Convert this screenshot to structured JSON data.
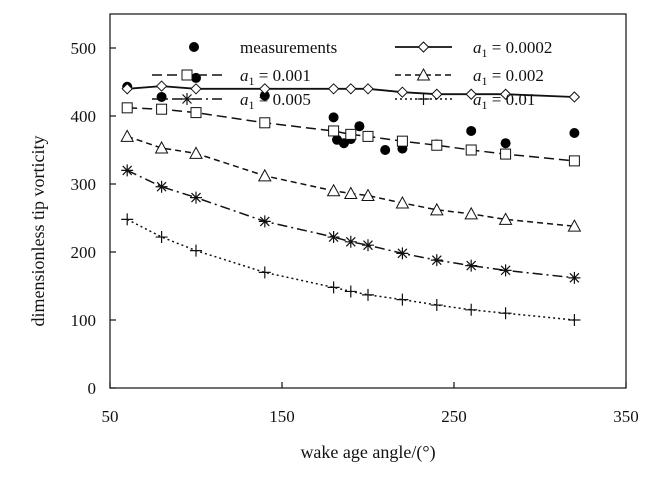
{
  "chart_data": {
    "type": "line",
    "xlabel": "wake age angle/(°)",
    "ylabel": "dimensionless tip vorticity",
    "xlim": [
      50,
      350
    ],
    "ylim": [
      0,
      550
    ],
    "xticks": [
      50,
      150,
      250,
      350
    ],
    "yticks": [
      0,
      100,
      200,
      300,
      400,
      500
    ],
    "grid": false,
    "legend_position": "top",
    "series": [
      {
        "name": "measurements",
        "style": "scatter",
        "marker": "filled-circle",
        "x": [
          60,
          80,
          100,
          140,
          180,
          182,
          186,
          190,
          195,
          210,
          220,
          240,
          260,
          280,
          320
        ],
        "y": [
          443,
          428,
          456,
          430,
          398,
          365,
          360,
          366,
          385,
          350,
          352,
          358,
          378,
          360,
          375
        ]
      },
      {
        "name": "a1 = 0.0002",
        "legend_var": "a",
        "legend_sub": "1",
        "legend_value": " = 0.0002",
        "style": "solid",
        "marker": "diamond",
        "x": [
          60,
          80,
          100,
          140,
          180,
          190,
          200,
          220,
          240,
          260,
          280,
          320
        ],
        "y": [
          440,
          444,
          440,
          440,
          440,
          440,
          440,
          435,
          432,
          432,
          432,
          428
        ]
      },
      {
        "name": "a1 = 0.001",
        "legend_var": "a",
        "legend_sub": "1",
        "legend_value": " = 0.001",
        "style": "dashed",
        "marker": "square",
        "x": [
          60,
          80,
          100,
          140,
          180,
          190,
          200,
          220,
          240,
          260,
          280,
          320
        ],
        "y": [
          412,
          410,
          405,
          390,
          378,
          373,
          370,
          363,
          357,
          350,
          344,
          334
        ]
      },
      {
        "name": "a1 = 0.002",
        "legend_var": "a",
        "legend_sub": "1",
        "legend_value": " = 0.002",
        "style": "dash-short",
        "marker": "triangle",
        "x": [
          60,
          80,
          100,
          140,
          180,
          190,
          200,
          220,
          240,
          260,
          280,
          320
        ],
        "y": [
          370,
          353,
          345,
          312,
          290,
          286,
          283,
          272,
          262,
          256,
          248,
          238
        ]
      },
      {
        "name": "a1 = 0.005",
        "legend_var": "a",
        "legend_sub": "1",
        "legend_value": " = 0.005",
        "style": "dash-dot",
        "marker": "asterisk",
        "x": [
          60,
          80,
          100,
          140,
          180,
          190,
          200,
          220,
          240,
          260,
          280,
          320
        ],
        "y": [
          320,
          296,
          280,
          245,
          222,
          215,
          210,
          198,
          188,
          180,
          173,
          162
        ]
      },
      {
        "name": "a1 = 0.01",
        "legend_var": "a",
        "legend_sub": "1",
        "legend_value": " = 0.01",
        "style": "dotted",
        "marker": "plus",
        "x": [
          60,
          80,
          100,
          140,
          180,
          190,
          200,
          220,
          240,
          260,
          280,
          320
        ],
        "y": [
          248,
          222,
          202,
          170,
          148,
          142,
          137,
          130,
          122,
          115,
          110,
          100
        ]
      }
    ]
  }
}
